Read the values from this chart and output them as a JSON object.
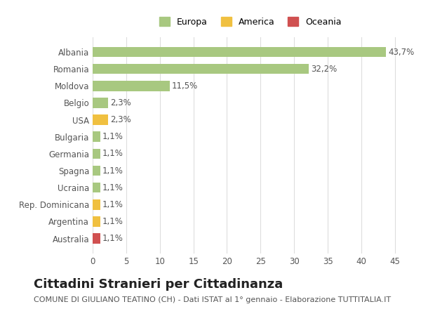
{
  "categories": [
    "Australia",
    "Argentina",
    "Rep. Dominicana",
    "Ucraina",
    "Spagna",
    "Germania",
    "Bulgaria",
    "USA",
    "Belgio",
    "Moldova",
    "Romania",
    "Albania"
  ],
  "values": [
    1.1,
    1.1,
    1.1,
    1.1,
    1.1,
    1.1,
    1.1,
    2.3,
    2.3,
    11.5,
    32.2,
    43.7
  ],
  "colors": [
    "#d05050",
    "#f0c040",
    "#f0c040",
    "#a8c880",
    "#a8c880",
    "#a8c880",
    "#a8c880",
    "#f0c040",
    "#a8c880",
    "#a8c880",
    "#a8c880",
    "#a8c880"
  ],
  "labels": [
    "1,1%",
    "1,1%",
    "1,1%",
    "1,1%",
    "1,1%",
    "1,1%",
    "1,1%",
    "2,3%",
    "2,3%",
    "11,5%",
    "32,2%",
    "43,7%"
  ],
  "legend_labels": [
    "Europa",
    "America",
    "Oceania"
  ],
  "legend_colors": [
    "#a8c880",
    "#f0c040",
    "#d05050"
  ],
  "title": "Cittadini Stranieri per Cittadinanza",
  "subtitle": "COMUNE DI GIULIANO TEATINO (CH) - Dati ISTAT al 1° gennaio - Elaborazione TUTTITALIA.IT",
  "xlim": [
    0,
    47
  ],
  "xticks": [
    0,
    5,
    10,
    15,
    20,
    25,
    30,
    35,
    40,
    45
  ],
  "bar_height": 0.6,
  "background_color": "#ffffff",
  "grid_color": "#dddddd",
  "title_fontsize": 13,
  "subtitle_fontsize": 8,
  "label_fontsize": 8.5,
  "tick_fontsize": 8.5
}
